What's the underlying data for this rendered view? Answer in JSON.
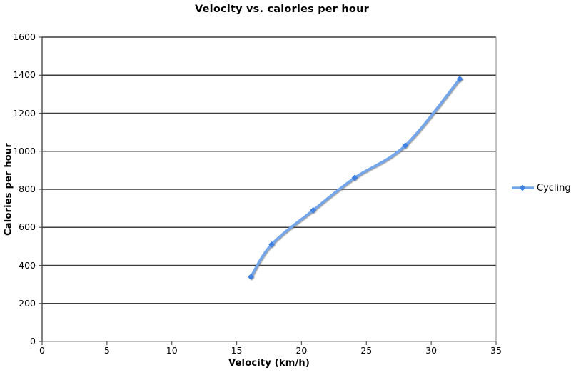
{
  "title": "Velocity vs. calories per hour",
  "chart_data": {
    "type": "line",
    "title": "Velocity vs. calories per hour",
    "xlabel": "Velocity (km/h)",
    "ylabel": "Calories per hour",
    "xlim": [
      0,
      35
    ],
    "ylim": [
      0,
      1600
    ],
    "x_ticks": [
      0,
      5,
      10,
      15,
      20,
      25,
      30,
      35
    ],
    "y_ticks": [
      0,
      200,
      400,
      600,
      800,
      1000,
      1200,
      1400,
      1600
    ],
    "grid": "horizontal-only",
    "legend_position": "right-middle",
    "series": [
      {
        "name": "Cycling",
        "x": [
          16.1,
          17.7,
          20.9,
          24.1,
          28.0,
          32.2
        ],
        "y": [
          340,
          510,
          690,
          860,
          1030,
          1380
        ],
        "smooth": true,
        "marker": "diamond",
        "line_color": "#74a6ec",
        "marker_color": "#4080e0"
      }
    ],
    "colors": {
      "gridline": "#3d3d3d",
      "axis_gray": "#999999",
      "tick_dark": "#555555",
      "background": "#ffffff",
      "text": "#000000"
    }
  },
  "legend": {
    "items": [
      {
        "label": "Cycling"
      }
    ]
  }
}
